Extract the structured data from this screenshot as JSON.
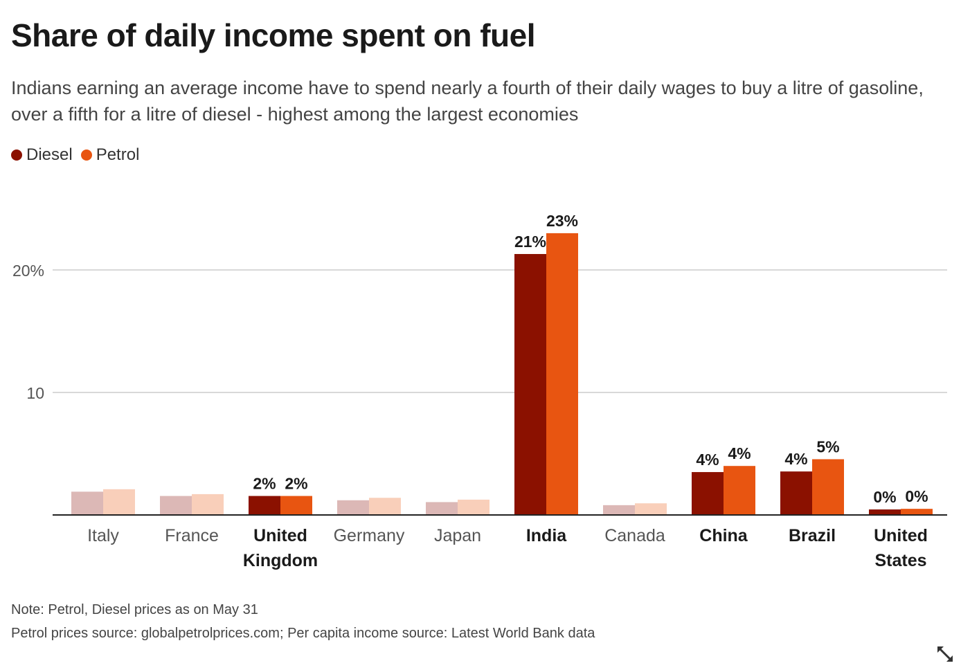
{
  "title": "Share of daily income spent on fuel",
  "subtitle": "Indians earning an average income have to spend nearly a fourth of their daily wages to buy a litre of gasoline, over a fifth for a litre of diesel - highest among the largest economies",
  "legend": [
    {
      "label": "Diesel",
      "color": "#8b1100"
    },
    {
      "label": "Petrol",
      "color": "#e85511"
    }
  ],
  "notes": {
    "line1": "Note: Petrol, Diesel prices as on May 31",
    "line2": "Petrol prices source: globalpetrolprices.com; Per capita income source: Latest World Bank data"
  },
  "expand_icon": "expand-arrows-icon",
  "chart_data": {
    "type": "bar",
    "categories": [
      "Italy",
      "France",
      "United Kingdom",
      "Germany",
      "Japan",
      "India",
      "Canada",
      "China",
      "Brazil",
      "United States"
    ],
    "highlighted": [
      false,
      false,
      true,
      false,
      false,
      true,
      false,
      true,
      true,
      true
    ],
    "series": [
      {
        "name": "Diesel",
        "color": "#8b1100",
        "faded_color": "#dcb8b6",
        "values": [
          1.9,
          1.55,
          1.55,
          1.2,
          1.05,
          21.3,
          0.8,
          3.5,
          3.55,
          0.45
        ],
        "labels": [
          "",
          "",
          "2%",
          "",
          "",
          "21%",
          "",
          "4%",
          "4%",
          "0%"
        ]
      },
      {
        "name": "Petrol",
        "color": "#e85511",
        "faded_color": "#f9cfba",
        "values": [
          2.1,
          1.7,
          1.55,
          1.4,
          1.25,
          23.0,
          0.95,
          4.0,
          4.55,
          0.5
        ],
        "labels": [
          "",
          "",
          "2%",
          "",
          "",
          "23%",
          "",
          "4%",
          "5%",
          "0%"
        ]
      }
    ],
    "yticks": [
      10,
      20
    ],
    "ytick_labels": [
      "10",
      "20%"
    ],
    "ylim": [
      0,
      25
    ],
    "grid": true,
    "legend_position": "top-left"
  }
}
